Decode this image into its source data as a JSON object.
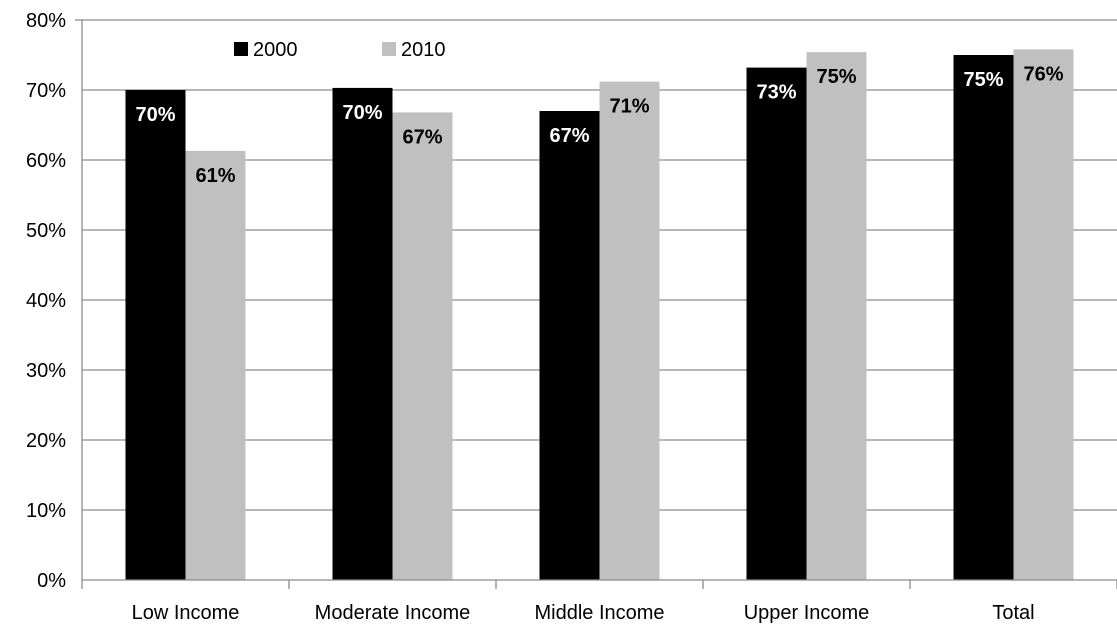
{
  "chart_data": {
    "type": "bar",
    "categories": [
      "Low Income",
      "Moderate Income",
      "Middle Income",
      "Upper Income",
      "Total"
    ],
    "series": [
      {
        "name": "2000",
        "values": [
          70,
          70.3,
          67,
          73.2,
          75
        ],
        "labels": [
          "70%",
          "70%",
          "67%",
          "73%",
          "75%"
        ],
        "color": "#000000",
        "label_color": "#ffffff"
      },
      {
        "name": "2010",
        "values": [
          61.3,
          66.8,
          71.2,
          75.4,
          75.8
        ],
        "labels": [
          "61%",
          "67%",
          "71%",
          "75%",
          "76%"
        ],
        "color": "#c0c0c0",
        "label_color": "#000000"
      }
    ],
    "yticks": [
      "0%",
      "10%",
      "20%",
      "30%",
      "40%",
      "50%",
      "60%",
      "70%",
      "80%"
    ],
    "ylim": [
      0,
      80
    ],
    "grid": true,
    "legend": "top-left",
    "gridline_color": "#8c8c8c"
  }
}
